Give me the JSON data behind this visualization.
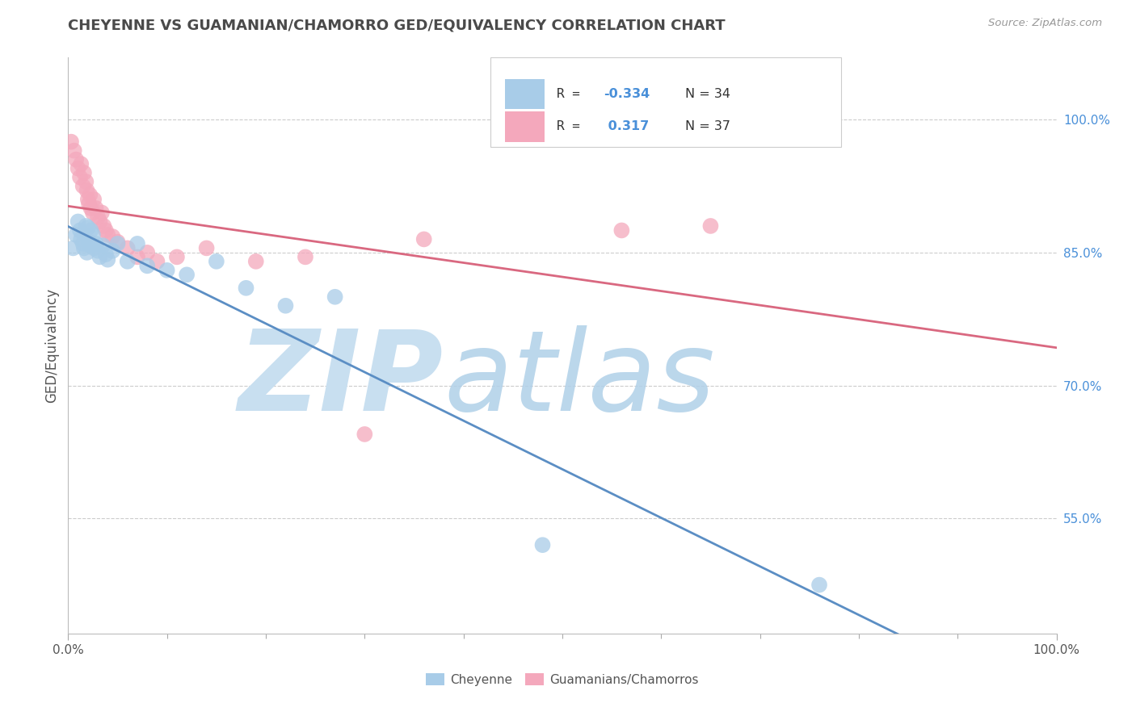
{
  "title": "CHEYENNE VS GUAMANIAN/CHAMORRO GED/EQUIVALENCY CORRELATION CHART",
  "source": "Source: ZipAtlas.com",
  "ylabel": "GED/Equivalency",
  "ytick_values": [
    0.55,
    0.7,
    0.85,
    1.0
  ],
  "xlim": [
    0.0,
    1.0
  ],
  "ylim": [
    0.42,
    1.07
  ],
  "R_cheyenne": -0.334,
  "R_guamanian": 0.317,
  "N_cheyenne": 34,
  "N_guamanian": 37,
  "cheyenne_color": "#a8cce8",
  "guamanian_color": "#f4a8bc",
  "cheyenne_line_color": "#5b8ec4",
  "guamanian_line_color": "#d96880",
  "background_color": "#ffffff",
  "watermark_zip_color": "#c8dff0",
  "watermark_atlas_color": "#b0d0e8",
  "grid_color": "#cccccc",
  "legend_label1": "Cheyenne",
  "legend_label2": "Guamanians/Chamorros",
  "cheyenne_x": [
    0.005,
    0.008,
    0.01,
    0.012,
    0.013,
    0.015,
    0.016,
    0.018,
    0.019,
    0.02,
    0.021,
    0.022,
    0.023,
    0.025,
    0.026,
    0.028,
    0.03,
    0.032,
    0.035,
    0.038,
    0.04,
    0.045,
    0.05,
    0.06,
    0.07,
    0.08,
    0.1,
    0.12,
    0.15,
    0.18,
    0.22,
    0.27,
    0.48,
    0.76
  ],
  "cheyenne_y": [
    0.855,
    0.87,
    0.885,
    0.875,
    0.865,
    0.86,
    0.855,
    0.88,
    0.85,
    0.878,
    0.862,
    0.858,
    0.875,
    0.87,
    0.855,
    0.86,
    0.852,
    0.845,
    0.858,
    0.848,
    0.842,
    0.852,
    0.86,
    0.84,
    0.86,
    0.835,
    0.83,
    0.825,
    0.84,
    0.81,
    0.79,
    0.8,
    0.52,
    0.475
  ],
  "guamanian_x": [
    0.003,
    0.006,
    0.008,
    0.01,
    0.012,
    0.013,
    0.015,
    0.016,
    0.018,
    0.019,
    0.02,
    0.021,
    0.022,
    0.023,
    0.025,
    0.026,
    0.028,
    0.03,
    0.032,
    0.034,
    0.036,
    0.038,
    0.04,
    0.045,
    0.05,
    0.06,
    0.07,
    0.08,
    0.09,
    0.11,
    0.14,
    0.19,
    0.24,
    0.3,
    0.36,
    0.56,
    0.65
  ],
  "guamanian_y": [
    0.975,
    0.965,
    0.955,
    0.945,
    0.935,
    0.95,
    0.925,
    0.94,
    0.93,
    0.92,
    0.91,
    0.905,
    0.915,
    0.9,
    0.895,
    0.91,
    0.9,
    0.89,
    0.885,
    0.895,
    0.88,
    0.875,
    0.87,
    0.868,
    0.862,
    0.855,
    0.845,
    0.85,
    0.84,
    0.845,
    0.855,
    0.84,
    0.845,
    0.645,
    0.865,
    0.875,
    0.88
  ]
}
